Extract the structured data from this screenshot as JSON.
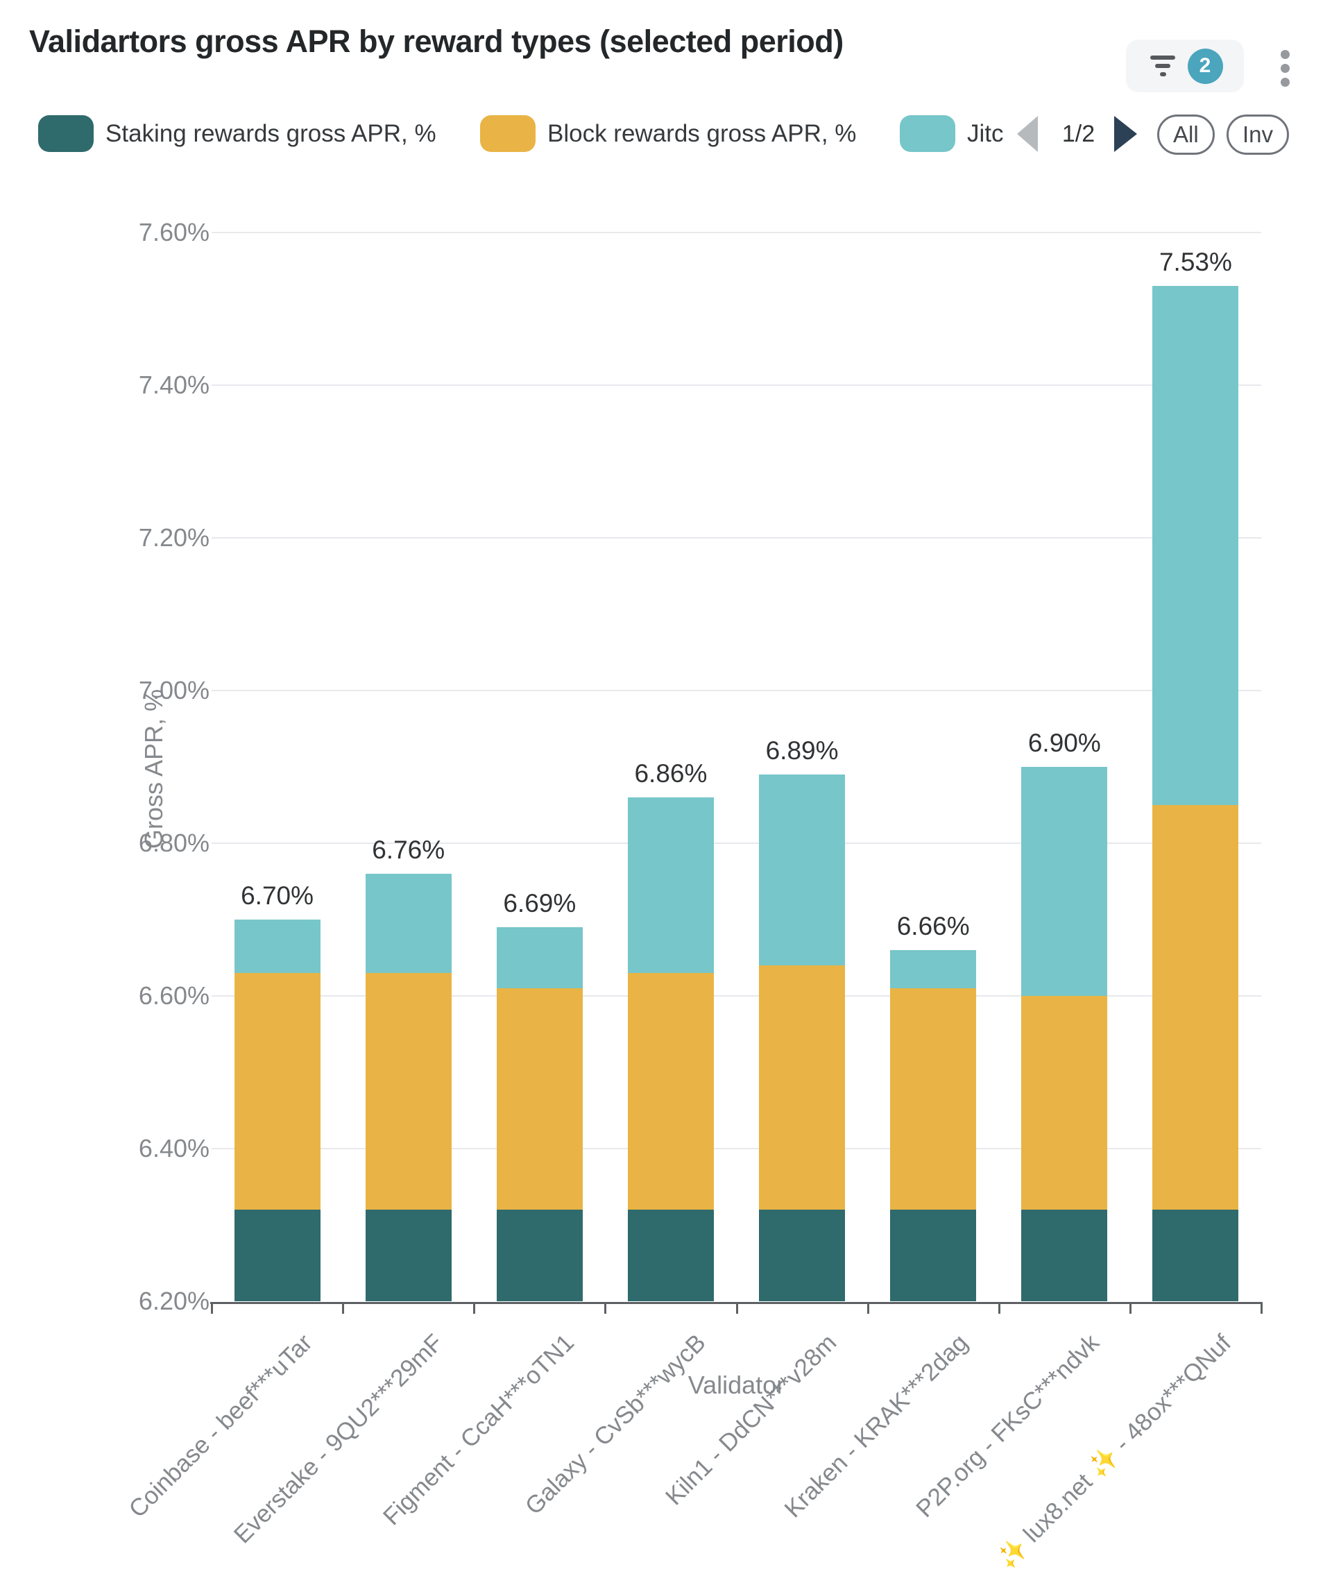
{
  "header": {
    "title": "Validartors gross APR by reward types (selected period)",
    "filter_badge_count": "2",
    "filter_badge_color": "#4aa5bd"
  },
  "icons": {
    "filter_icon": "funnel-lines",
    "menu_icon": "vertical-kebab-dots",
    "prev_icon": "left-triangle",
    "next_icon": "right-triangle"
  },
  "legend": {
    "items": [
      {
        "label": "Staking rewards gross APR, %",
        "color": "#2f6a6c"
      },
      {
        "label": "Block rewards gross APR, %",
        "color": "#e9b445"
      },
      {
        "label": "Jitc",
        "color": "#77c6c9"
      }
    ],
    "pagination": {
      "page_indicator": "1/2",
      "all_label": "All",
      "inverse_label": "Inv"
    }
  },
  "chart_data": {
    "type": "bar",
    "stacked": true,
    "xlabel": "Validator",
    "ylabel": "Gross APR, %",
    "ylim": [
      6.2,
      7.6
    ],
    "ytick_step": 0.2,
    "grid": true,
    "legend_position": "top",
    "categories": [
      "Coinbase - beef***uTar",
      "Everstake - 9QU2***29mF",
      "Figment - CcaH***oTN1",
      "Galaxy - CvSb***wycB",
      "Kiln1 - DdCN***v28m",
      "Kraken - KRAK***2dag",
      "P2P.org - FKsC***ndvk",
      "✨ lux8.net ✨ - 48ox***QNuf"
    ],
    "series": [
      {
        "name": "Staking rewards gross APR, %",
        "color": "#2f6a6c",
        "values": [
          6.32,
          6.32,
          6.32,
          6.32,
          6.32,
          6.32,
          6.32,
          6.32
        ]
      },
      {
        "name": "Block rewards gross APR, %",
        "color": "#e9b445",
        "values": [
          0.31,
          0.31,
          0.29,
          0.31,
          0.32,
          0.29,
          0.28,
          0.53
        ]
      },
      {
        "name": "Jitc",
        "color": "#77c6c9",
        "values": [
          0.07,
          0.13,
          0.08,
          0.23,
          0.25,
          0.05,
          0.3,
          0.68
        ]
      }
    ],
    "totals": [
      6.7,
      6.76,
      6.69,
      6.86,
      6.89,
      6.66,
      6.9,
      7.53
    ],
    "total_labels": [
      "6.70%",
      "6.76%",
      "6.69%",
      "6.86%",
      "6.89%",
      "6.66%",
      "6.90%",
      "7.53%"
    ]
  }
}
